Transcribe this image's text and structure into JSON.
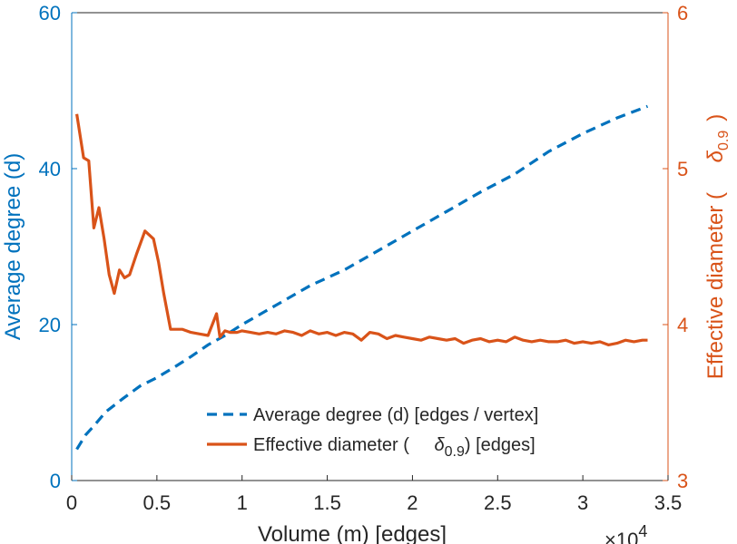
{
  "colors": {
    "left_axis": "#0072BD",
    "right_axis": "#D95319",
    "text": "#262626",
    "background": "#FFFFFF"
  },
  "chart_data": {
    "type": "line",
    "xlabel": "Volume (m) [edges]",
    "x_multiplier": "×10",
    "x_multiplier_exp": "4",
    "xlim": [
      0,
      3.5
    ],
    "x_ticks": [
      "0",
      "0.5",
      "1",
      "1.5",
      "2",
      "2.5",
      "3",
      "3.5"
    ],
    "x_tick_values": [
      0,
      0.5,
      1,
      1.5,
      2,
      2.5,
      3,
      3.5
    ],
    "ylabel_left": "Average degree (d)",
    "ylim_left": [
      0,
      60
    ],
    "y_ticks_left": [
      "0",
      "20",
      "40",
      "60"
    ],
    "y_tick_values_left": [
      0,
      20,
      40,
      60
    ],
    "ylabel_right": "Effective diameter (",
    "ylabel_right_symbol": "δ",
    "ylabel_right_subscript": "0.9",
    "ylabel_right_end": ")",
    "ylim_right": [
      3,
      6
    ],
    "y_ticks_right": [
      "3",
      "4",
      "5",
      "6"
    ],
    "y_tick_values_right": [
      3,
      4,
      5,
      6
    ],
    "legend": {
      "position": "bottom-right",
      "entries": [
        {
          "text": "Average degree (d) [edges / vertex]"
        },
        {
          "text_pre": "Effective diameter (",
          "symbol": "δ",
          "subscript": "0.9",
          "text_post": ") [edges]"
        }
      ]
    },
    "series": [
      {
        "name": "Average degree (d) [edges / vertex]",
        "axis": "left",
        "style": "dashed",
        "x": [
          0.03,
          0.08,
          0.13,
          0.2,
          0.3,
          0.4,
          0.5,
          0.6,
          0.7,
          0.8,
          0.9,
          1.0,
          1.2,
          1.4,
          1.6,
          1.8,
          2.0,
          2.2,
          2.4,
          2.6,
          2.8,
          3.0,
          3.2,
          3.38
        ],
        "values": [
          4.0,
          5.8,
          7.0,
          8.8,
          10.5,
          12.1,
          13.2,
          14.5,
          15.9,
          17.4,
          18.6,
          20.0,
          22.5,
          25.0,
          27.0,
          29.5,
          32.0,
          34.5,
          37.0,
          39.3,
          42.2,
          44.5,
          46.5,
          48.0
        ]
      },
      {
        "name": "Effective diameter (δ0.9) [edges]",
        "axis": "right",
        "style": "solid",
        "x": [
          0.03,
          0.07,
          0.1,
          0.13,
          0.16,
          0.19,
          0.22,
          0.25,
          0.28,
          0.31,
          0.34,
          0.38,
          0.43,
          0.48,
          0.51,
          0.54,
          0.58,
          0.61,
          0.65,
          0.7,
          0.75,
          0.8,
          0.85,
          0.87,
          0.9,
          0.93,
          0.97,
          1.0,
          1.05,
          1.1,
          1.15,
          1.2,
          1.25,
          1.3,
          1.35,
          1.4,
          1.45,
          1.5,
          1.55,
          1.6,
          1.65,
          1.7,
          1.75,
          1.8,
          1.85,
          1.9,
          1.95,
          2.0,
          2.05,
          2.1,
          2.15,
          2.2,
          2.25,
          2.3,
          2.35,
          2.4,
          2.45,
          2.5,
          2.55,
          2.6,
          2.65,
          2.7,
          2.75,
          2.8,
          2.85,
          2.9,
          2.95,
          3.0,
          3.05,
          3.1,
          3.15,
          3.2,
          3.25,
          3.3,
          3.35,
          3.38
        ],
        "values": [
          5.35,
          5.07,
          5.05,
          4.62,
          4.75,
          4.55,
          4.32,
          4.2,
          4.35,
          4.3,
          4.32,
          4.45,
          4.6,
          4.55,
          4.4,
          4.2,
          3.97,
          3.97,
          3.97,
          3.95,
          3.94,
          3.93,
          4.07,
          3.92,
          3.96,
          3.95,
          3.95,
          3.96,
          3.95,
          3.94,
          3.95,
          3.94,
          3.96,
          3.95,
          3.93,
          3.96,
          3.94,
          3.95,
          3.93,
          3.95,
          3.94,
          3.9,
          3.95,
          3.94,
          3.91,
          3.93,
          3.92,
          3.91,
          3.9,
          3.92,
          3.91,
          3.9,
          3.91,
          3.88,
          3.9,
          3.91,
          3.89,
          3.9,
          3.89,
          3.92,
          3.9,
          3.89,
          3.9,
          3.89,
          3.89,
          3.9,
          3.88,
          3.89,
          3.88,
          3.89,
          3.87,
          3.88,
          3.9,
          3.89,
          3.9,
          3.9
        ]
      }
    ]
  }
}
